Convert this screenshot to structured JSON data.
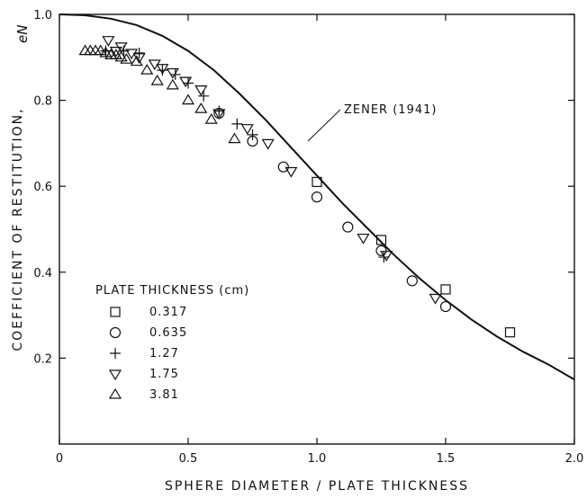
{
  "chart_data": {
    "type": "scatter",
    "title": "",
    "xlabel": "SPHERE DIAMETER / PLATE THICKNESS",
    "ylabel": "COEFFICIENT OF RESTITUTION,",
    "ylabel_symbol": "eN",
    "xlim": [
      0,
      2.0
    ],
    "ylim": [
      0,
      1.0
    ],
    "xticks": [
      "0",
      "0.5",
      "1.0",
      "1.5",
      "2.0"
    ],
    "yticks": [
      "0.2",
      "0.4",
      "0.6",
      "0.8",
      "1.0"
    ],
    "grid": false,
    "legend_title": "PLATE THICKNESS (cm)",
    "legend_position": "bottom-left",
    "series": [
      {
        "name": "0.317",
        "marker": "square",
        "points": [
          [
            1.0,
            0.61
          ],
          [
            1.25,
            0.475
          ],
          [
            1.5,
            0.36
          ],
          [
            1.75,
            0.26
          ]
        ]
      },
      {
        "name": "0.635",
        "marker": "circle",
        "points": [
          [
            0.62,
            0.77
          ],
          [
            0.75,
            0.705
          ],
          [
            0.87,
            0.645
          ],
          [
            1.0,
            0.575
          ],
          [
            1.12,
            0.505
          ],
          [
            1.25,
            0.45
          ],
          [
            1.37,
            0.38
          ],
          [
            1.5,
            0.32
          ]
        ]
      },
      {
        "name": "1.27",
        "marker": "plus",
        "points": [
          [
            0.18,
            0.915
          ],
          [
            0.25,
            0.915
          ],
          [
            0.31,
            0.91
          ],
          [
            0.4,
            0.87
          ],
          [
            0.45,
            0.86
          ],
          [
            0.5,
            0.84
          ],
          [
            0.56,
            0.81
          ],
          [
            0.62,
            0.775
          ],
          [
            0.69,
            0.745
          ],
          [
            0.75,
            0.72
          ],
          [
            1.26,
            0.435
          ]
        ]
      },
      {
        "name": "1.75",
        "marker": "triangle-down",
        "points": [
          [
            0.19,
            0.94
          ],
          [
            0.22,
            0.915
          ],
          [
            0.24,
            0.925
          ],
          [
            0.28,
            0.91
          ],
          [
            0.31,
            0.9
          ],
          [
            0.37,
            0.885
          ],
          [
            0.4,
            0.875
          ],
          [
            0.44,
            0.865
          ],
          [
            0.49,
            0.845
          ],
          [
            0.55,
            0.825
          ],
          [
            0.62,
            0.77
          ],
          [
            0.73,
            0.735
          ],
          [
            0.81,
            0.7
          ],
          [
            0.9,
            0.635
          ],
          [
            1.18,
            0.48
          ],
          [
            1.27,
            0.44
          ],
          [
            1.46,
            0.34
          ]
        ]
      },
      {
        "name": "3.81",
        "marker": "triangle-up",
        "points": [
          [
            0.1,
            0.915
          ],
          [
            0.12,
            0.915
          ],
          [
            0.14,
            0.915
          ],
          [
            0.16,
            0.915
          ],
          [
            0.18,
            0.91
          ],
          [
            0.2,
            0.905
          ],
          [
            0.22,
            0.905
          ],
          [
            0.24,
            0.9
          ],
          [
            0.26,
            0.895
          ],
          [
            0.3,
            0.89
          ],
          [
            0.34,
            0.87
          ],
          [
            0.38,
            0.845
          ],
          [
            0.44,
            0.835
          ],
          [
            0.5,
            0.8
          ],
          [
            0.55,
            0.78
          ],
          [
            0.59,
            0.755
          ],
          [
            0.68,
            0.71
          ]
        ]
      }
    ],
    "curve": {
      "name": "ZENER (1941)",
      "points": [
        [
          0,
          1.0
        ],
        [
          0.1,
          0.998
        ],
        [
          0.2,
          0.99
        ],
        [
          0.3,
          0.975
        ],
        [
          0.4,
          0.95
        ],
        [
          0.5,
          0.915
        ],
        [
          0.6,
          0.87
        ],
        [
          0.7,
          0.815
        ],
        [
          0.8,
          0.755
        ],
        [
          0.9,
          0.69
        ],
        [
          1.0,
          0.625
        ],
        [
          1.1,
          0.56
        ],
        [
          1.2,
          0.5
        ],
        [
          1.3,
          0.44
        ],
        [
          1.4,
          0.385
        ],
        [
          1.5,
          0.335
        ],
        [
          1.6,
          0.29
        ],
        [
          1.7,
          0.25
        ],
        [
          1.8,
          0.215
        ],
        [
          1.9,
          0.185
        ],
        [
          2.0,
          0.15
        ]
      ]
    }
  }
}
